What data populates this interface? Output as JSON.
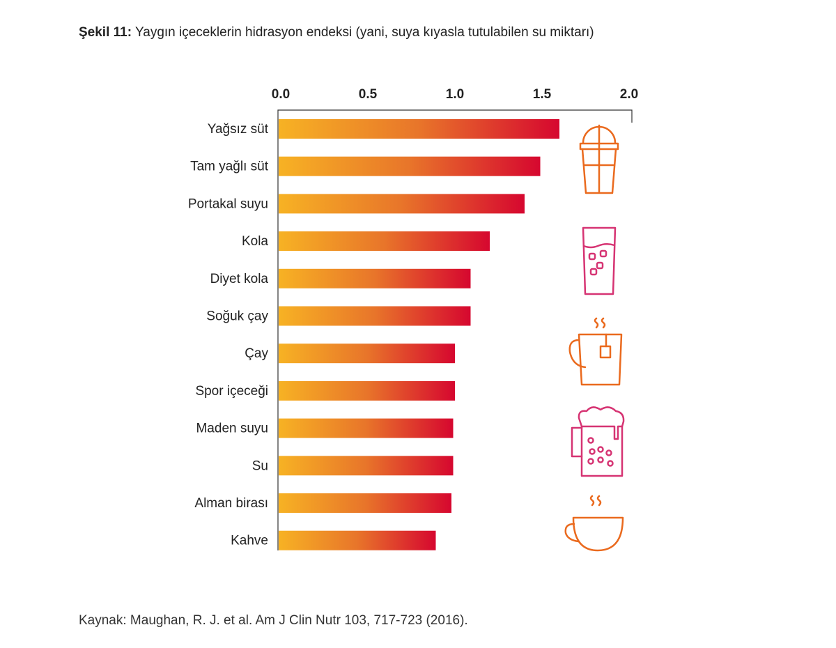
{
  "chart_data": {
    "type": "bar",
    "orientation": "horizontal",
    "title_prefix": "Şekil 11:",
    "title": "Yaygın içeceklerin hidrasyon endeksi (yani, suya kıyasla tutulabilen su miktarı)",
    "source": "Kaynak: Maughan, R. J. et al. Am J Clin Nutr 103, 717-723 (2016).",
    "categories": [
      "Yağsız süt",
      "Tam yağlı süt",
      "Portakal suyu",
      "Kola",
      "Diyet kola",
      "Soğuk çay",
      "Çay",
      "Spor içeceği",
      "Maden suyu",
      "Su",
      "Alman birası",
      "Kahve"
    ],
    "values": [
      1.6,
      1.49,
      1.4,
      1.2,
      1.09,
      1.09,
      1.0,
      1.0,
      0.99,
      0.99,
      0.98,
      0.89
    ],
    "xlim": [
      0,
      2.0
    ],
    "xticks": [
      "0.0",
      "0.5",
      "1.0",
      "1.5",
      "2.0"
    ],
    "axis_position": "top",
    "grid": false,
    "colors": {
      "gradient_start": "#f7b224",
      "gradient_mid": "#e8752a",
      "gradient_end": "#d6072f",
      "icon_orange": "#ea6a1e",
      "icon_pink": "#d63473"
    },
    "icons": [
      "milkshake-cup-icon",
      "soda-glass-icon",
      "tea-cup-icon",
      "beer-mug-icon",
      "coffee-cup-icon"
    ]
  }
}
